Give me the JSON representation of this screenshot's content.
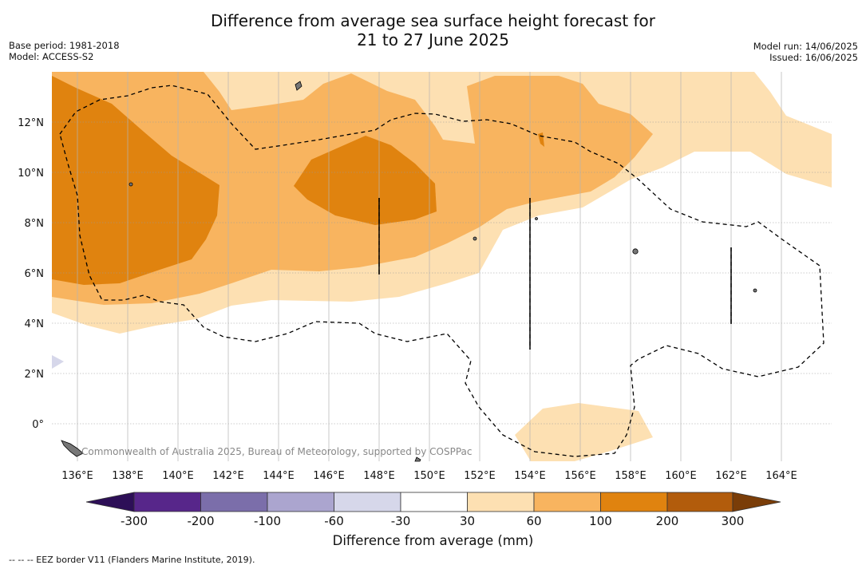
{
  "title_line1": "Difference from average sea surface height forecast for",
  "title_line2": "21 to 27 June 2025",
  "meta_left": {
    "base_period": "Base period: 1981-2018",
    "model": "Model: ACCESS-S2"
  },
  "meta_right": {
    "model_run": "Model run: 14/06/2025",
    "issued": "Issued: 16/06/2025"
  },
  "copyright": "Commonwealth of Australia 2025, Bureau of Meteorology, supported by COSPPac",
  "lat_labels": [
    "12°N",
    "10°N",
    "8°N",
    "6°N",
    "4°N",
    "2°N",
    "0°"
  ],
  "lon_labels": [
    "136°E",
    "138°E",
    "140°E",
    "142°E",
    "144°E",
    "146°E",
    "148°E",
    "150°E",
    "152°E",
    "154°E",
    "156°E",
    "158°E",
    "160°E",
    "162°E",
    "164°E"
  ],
  "colorbar": {
    "title": "Difference from average (mm)",
    "tick_labels": [
      "-300",
      "-200",
      "-100",
      "-60",
      "-30",
      "30",
      "60",
      "100",
      "200",
      "300"
    ],
    "colors": [
      "#2d0f57",
      "#57268a",
      "#7b6eaa",
      "#aba5cf",
      "#d6d7ea",
      "#ffffff",
      "#fde0b2",
      "#f8b45f",
      "#e0830f",
      "#b25c0c",
      "#7a3d08"
    ]
  },
  "footer": "--  --  -- EEZ border V11 (Flanders Marine Institute, 2019)."
}
